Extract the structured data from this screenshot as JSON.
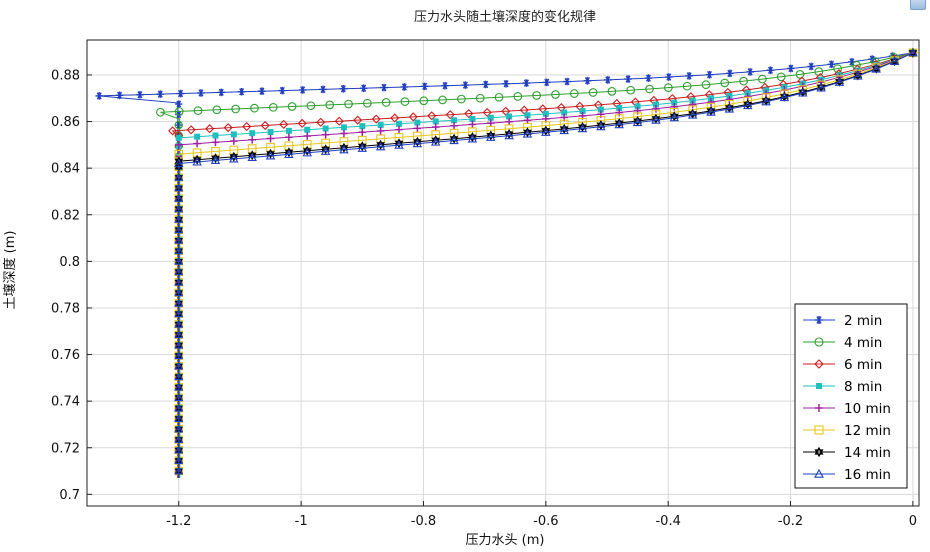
{
  "chart_data": {
    "type": "line",
    "title": "压力水头随土壤深度的变化规律",
    "xlabel": "压力水头 (m)",
    "ylabel": "土壤深度 (m)",
    "xlim": [
      -1.35,
      0.01
    ],
    "ylim": [
      0.695,
      0.895
    ],
    "xticks": [
      -1.2,
      -1,
      -0.8,
      -0.6,
      -0.4,
      -0.2,
      0
    ],
    "xtick_labels": [
      "-1.2",
      "-1",
      "-0.8",
      "-0.6",
      "-0.4",
      "-0.2",
      "0"
    ],
    "yticks": [
      0.7,
      0.72,
      0.74,
      0.76,
      0.78,
      0.8,
      0.82,
      0.84,
      0.86,
      0.88
    ],
    "ytick_labels": [
      "0.7",
      "0.72",
      "0.74",
      "0.76",
      "0.78",
      "0.8",
      "0.82",
      "0.84",
      "0.86",
      "0.88"
    ],
    "grid": true,
    "legend_position": "bottom-right",
    "series": [
      {
        "name": "2 min",
        "color": "#1f3fbf",
        "marker": "asterisk",
        "front_x": -1.33,
        "front_y": 0.871,
        "end_y": 0.8895
      },
      {
        "name": "4 min",
        "color": "#2ca02c",
        "marker": "circle",
        "front_x": -1.23,
        "front_y": 0.864,
        "end_y": 0.8895
      },
      {
        "name": "6 min",
        "color": "#c81e1e",
        "marker": "diamond",
        "front_x": -1.21,
        "front_y": 0.856,
        "end_y": 0.8895
      },
      {
        "name": "8 min",
        "color": "#1fbfbf",
        "marker": "square-filled",
        "front_x": -1.2,
        "front_y": 0.853,
        "end_y": 0.8895
      },
      {
        "name": "10 min",
        "color": "#a01fa0",
        "marker": "plus",
        "front_x": -1.2,
        "front_y": 0.85,
        "end_y": 0.8895
      },
      {
        "name": "12 min",
        "color": "#e6c619",
        "marker": "square",
        "front_x": -1.2,
        "front_y": 0.846,
        "end_y": 0.8895
      },
      {
        "name": "14 min",
        "color": "#000000",
        "marker": "hexagram",
        "front_x": -1.2,
        "front_y": 0.843,
        "end_y": 0.8895
      },
      {
        "name": "16 min",
        "color": "#1f3fbf",
        "marker": "triangle",
        "front_x": -1.2,
        "front_y": 0.842,
        "end_y": 0.8895
      }
    ],
    "vertical_segment": {
      "x": -1.2,
      "y_from": 0.707,
      "y_to": 0.846
    },
    "series_points": []
  }
}
